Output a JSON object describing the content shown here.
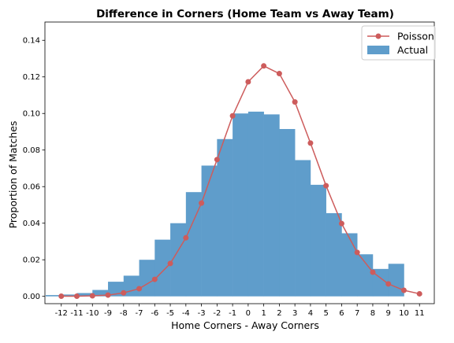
{
  "chart_data": {
    "type": "bar",
    "title": "Difference in Corners (Home Team vs Away Team)",
    "xlabel": "Home Corners - Away Corners",
    "ylabel": "Proportion of Matches",
    "x_ticks": [
      "-12",
      "-11",
      "-10",
      "-9",
      "-8",
      "-7",
      "-6",
      "-5",
      "-4",
      "-3",
      "-2",
      "-1",
      "0",
      "1",
      "2",
      "3",
      "4",
      "5",
      "6",
      "7",
      "8",
      "9",
      "10",
      "11"
    ],
    "x": [
      -12,
      -11,
      -10,
      -9,
      -8,
      -7,
      -6,
      -5,
      -4,
      -3,
      -2,
      -1,
      0,
      1,
      2,
      3,
      4,
      5,
      6,
      7,
      8,
      9,
      10,
      11
    ],
    "ylim": [
      -0.004,
      0.15
    ],
    "y_ticks": [
      "0.00",
      "0.02",
      "0.04",
      "0.06",
      "0.08",
      "0.10",
      "0.12",
      "0.14"
    ],
    "y_tick_values": [
      0,
      0.02,
      0.04,
      0.06,
      0.08,
      0.1,
      0.12,
      0.14
    ],
    "grid": false,
    "legend_position": "top-right",
    "series": [
      {
        "name": "Actual",
        "kind": "histogram",
        "color": "#5f9dcb",
        "bins": [
          {
            "from": -13,
            "to": -12,
            "value": 0.0007
          },
          {
            "from": -12,
            "to": -11,
            "value": 0.001
          },
          {
            "from": -11,
            "to": -10,
            "value": 0.0018
          },
          {
            "from": -10,
            "to": -9,
            "value": 0.0035
          },
          {
            "from": -9,
            "to": -8,
            "value": 0.008
          },
          {
            "from": -8,
            "to": -7,
            "value": 0.0113
          },
          {
            "from": -7,
            "to": -6,
            "value": 0.02
          },
          {
            "from": -6,
            "to": -5,
            "value": 0.031
          },
          {
            "from": -5,
            "to": -4,
            "value": 0.04
          },
          {
            "from": -4,
            "to": -3,
            "value": 0.057
          },
          {
            "from": -3,
            "to": -2,
            "value": 0.0715
          },
          {
            "from": -2,
            "to": -1,
            "value": 0.086
          },
          {
            "from": -1,
            "to": 0,
            "value": 0.1
          },
          {
            "from": 0,
            "to": 1,
            "value": 0.101
          },
          {
            "from": 1,
            "to": 2,
            "value": 0.0995
          },
          {
            "from": 2,
            "to": 3,
            "value": 0.0915
          },
          {
            "from": 3,
            "to": 4,
            "value": 0.0745
          },
          {
            "from": 4,
            "to": 5,
            "value": 0.061
          },
          {
            "from": 5,
            "to": 6,
            "value": 0.0455
          },
          {
            "from": 6,
            "to": 7,
            "value": 0.0345
          },
          {
            "from": 7,
            "to": 8,
            "value": 0.023
          },
          {
            "from": 8,
            "to": 9,
            "value": 0.015
          },
          {
            "from": 9,
            "to": 10,
            "value": 0.0178
          }
        ]
      },
      {
        "name": "Poisson",
        "kind": "line",
        "marker": "circle",
        "color": "#cd5c5c",
        "values": [
          0.0001,
          0.0001,
          0.0003,
          0.0007,
          0.0019,
          0.0042,
          0.0093,
          0.018,
          0.032,
          0.051,
          0.0748,
          0.0987,
          0.1173,
          0.126,
          0.1218,
          0.1063,
          0.0838,
          0.0605,
          0.0398,
          0.024,
          0.0132,
          0.0068,
          0.0033,
          0.0014
        ]
      }
    ]
  }
}
